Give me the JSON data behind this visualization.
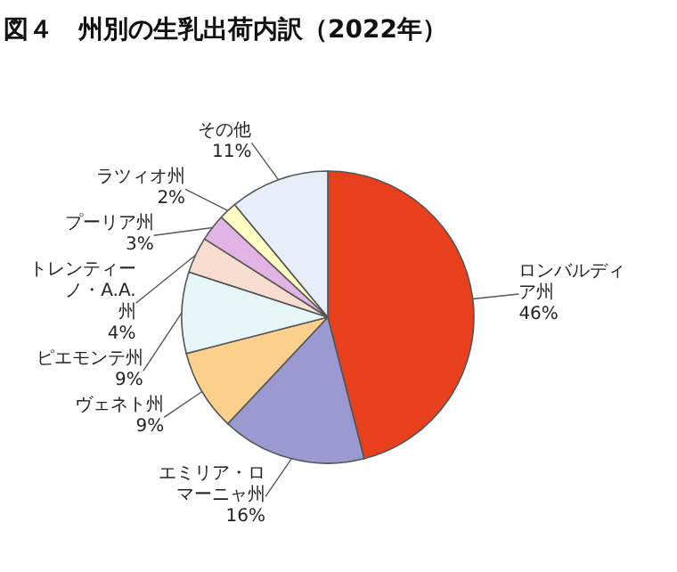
{
  "chart_data": {
    "type": "pie",
    "title": "図４　州別の生乳出荷内訳（2022年）",
    "categories": [
      "ロンバルディア州",
      "エミリア・ロマーニャ州",
      "ヴェネト州",
      "ピエモンテ州",
      "トレンティーノ・A.A.州",
      "プーリア州",
      "ラツィオ州",
      "その他"
    ],
    "values": [
      46,
      16,
      9,
      9,
      4,
      3,
      2,
      11
    ],
    "colors": [
      "#e8401c",
      "#9a9ad0",
      "#fbd08c",
      "#e6f5f7",
      "#f6ddd0",
      "#e2b4e4",
      "#ffffc4",
      "#e8eef8"
    ],
    "value_labels": [
      "46%",
      "16%",
      "9%",
      "9%",
      "4%",
      "3%",
      "2%",
      "11%"
    ]
  }
}
